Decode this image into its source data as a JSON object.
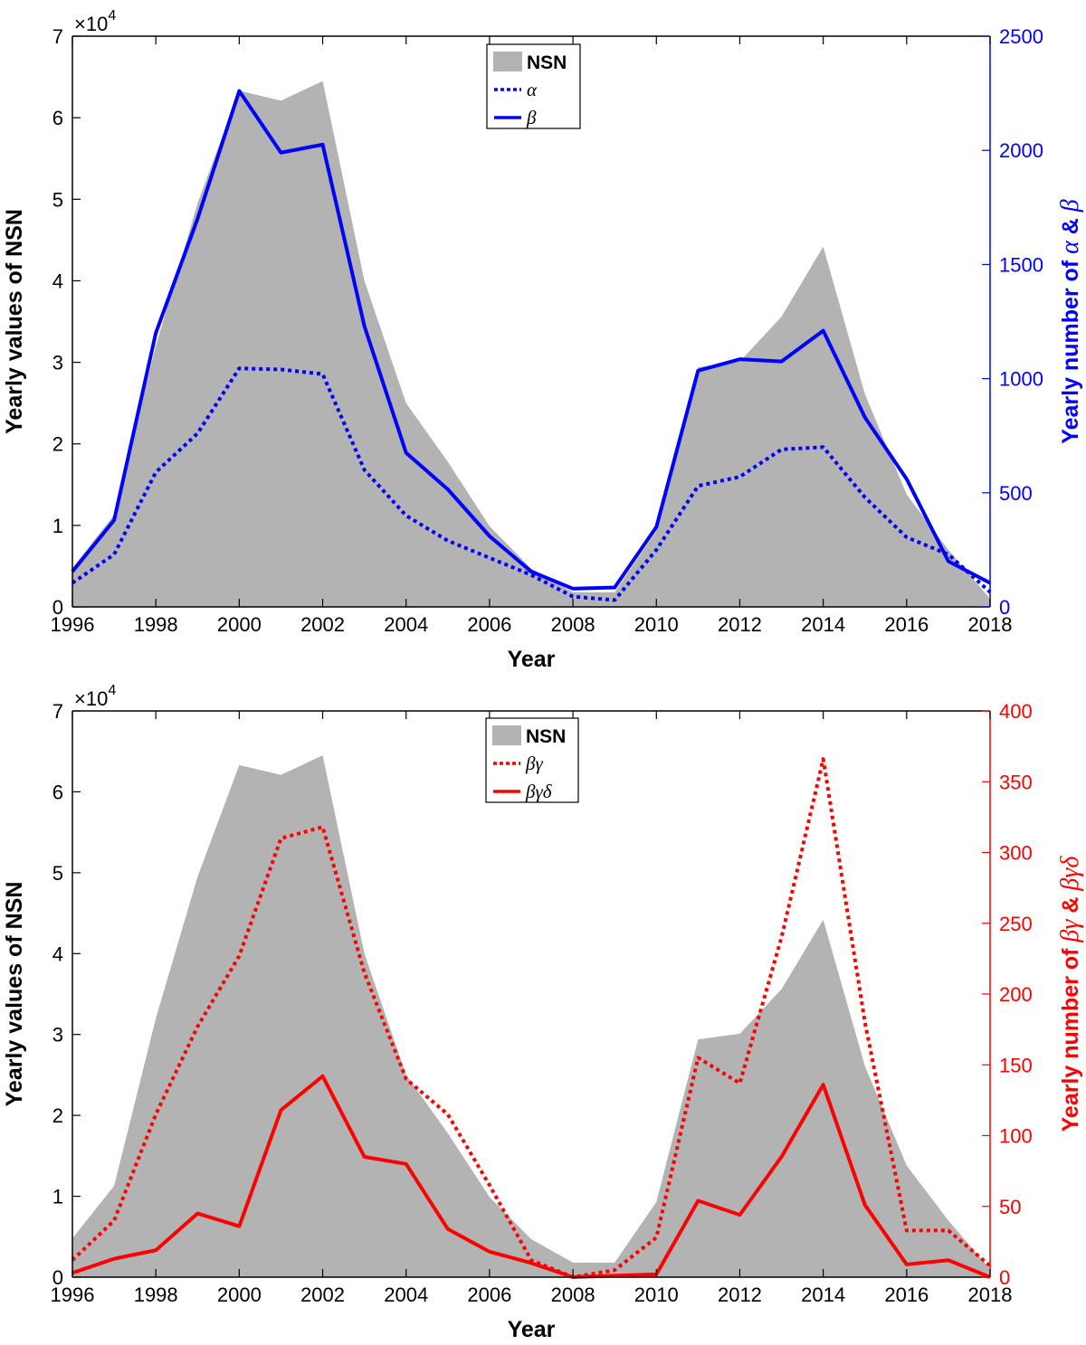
{
  "chart_data": [
    {
      "type": "area",
      "xlabel": "Year",
      "ylabel_left": "Yearly values of NSN",
      "ylabel_right_prefix": "Yearly number of ",
      "ylabel_right_greek": [
        "α",
        " & ",
        "β"
      ],
      "exponent_base": "×10",
      "exponent_power": "4",
      "x": [
        1996,
        1997,
        1998,
        1999,
        2000,
        2001,
        2002,
        2003,
        2004,
        2005,
        2006,
        2007,
        2008,
        2009,
        2010,
        2011,
        2012,
        2013,
        2014,
        2015,
        2016,
        2017,
        2018
      ],
      "xticks": [
        "1996",
        "1998",
        "2000",
        "2002",
        "2004",
        "2006",
        "2008",
        "2010",
        "2012",
        "2014",
        "2016",
        "2018"
      ],
      "xlim": [
        1996,
        2018
      ],
      "ylim_left": [
        0,
        70000
      ],
      "yticks_left": [
        "0",
        "1",
        "2",
        "3",
        "4",
        "5",
        "6",
        "7"
      ],
      "ylim_right": [
        0,
        2500
      ],
      "yticks_right": [
        "0",
        "500",
        "1000",
        "1500",
        "2000",
        "2500"
      ],
      "right_axis_color": "#0000ff",
      "nsn": {
        "name": "NSN",
        "color": "#b3b3b3",
        "values": [
          4800,
          11300,
          32000,
          49500,
          63300,
          62100,
          64500,
          40000,
          25000,
          17800,
          9900,
          4700,
          1800,
          1800,
          9300,
          29400,
          30100,
          35600,
          44200,
          26100,
          13800,
          7000,
          1000
        ]
      },
      "series": [
        {
          "name": "α",
          "style": "dotted",
          "color": "#0000ff",
          "values": [
            105,
            230,
            590,
            760,
            1045,
            1040,
            1020,
            600,
            400,
            290,
            215,
            140,
            45,
            30,
            250,
            530,
            570,
            690,
            700,
            480,
            305,
            230,
            65
          ]
        },
        {
          "name": "β",
          "style": "solid",
          "color": "#0000ff",
          "values": [
            155,
            380,
            1200,
            1700,
            2260,
            1990,
            2025,
            1230,
            675,
            515,
            310,
            155,
            80,
            85,
            350,
            1035,
            1085,
            1075,
            1210,
            830,
            560,
            200,
            105
          ]
        }
      ],
      "legend_position": "top-center"
    },
    {
      "type": "area",
      "xlabel": "Year",
      "ylabel_left": "Yearly values of NSN",
      "ylabel_right_prefix": "Yearly number of ",
      "ylabel_right_greek": [
        "βγ",
        " & ",
        "βγδ"
      ],
      "exponent_base": "×10",
      "exponent_power": "4",
      "x": [
        1996,
        1997,
        1998,
        1999,
        2000,
        2001,
        2002,
        2003,
        2004,
        2005,
        2006,
        2007,
        2008,
        2009,
        2010,
        2011,
        2012,
        2013,
        2014,
        2015,
        2016,
        2017,
        2018
      ],
      "xticks": [
        "1996",
        "1998",
        "2000",
        "2002",
        "2004",
        "2006",
        "2008",
        "2010",
        "2012",
        "2014",
        "2016",
        "2018"
      ],
      "xlim": [
        1996,
        2018
      ],
      "ylim_left": [
        0,
        70000
      ],
      "yticks_left": [
        "0",
        "1",
        "2",
        "3",
        "4",
        "5",
        "6",
        "7"
      ],
      "ylim_right": [
        0,
        400
      ],
      "yticks_right": [
        "0",
        "50",
        "100",
        "150",
        "200",
        "250",
        "300",
        "350",
        "400"
      ],
      "right_axis_color": "#ff0000",
      "nsn": {
        "name": "NSN",
        "color": "#b3b3b3",
        "values": [
          4800,
          11300,
          32000,
          49500,
          63300,
          62100,
          64500,
          40000,
          25000,
          17800,
          9900,
          4700,
          1800,
          1800,
          9300,
          29400,
          30100,
          35600,
          44200,
          26100,
          13800,
          7000,
          1000
        ]
      },
      "series": [
        {
          "name": "βγ",
          "style": "dotted",
          "color": "#ff0000",
          "values": [
            12,
            40,
            115,
            177,
            227,
            310,
            318,
            215,
            140,
            115,
            65,
            12,
            0,
            5,
            28,
            155,
            137,
            240,
            366,
            180,
            33,
            33,
            8
          ]
        },
        {
          "name": "βγδ",
          "style": "solid",
          "color": "#ff0000",
          "values": [
            3,
            13,
            19,
            45,
            36,
            118,
            142,
            85,
            80,
            34,
            18,
            10,
            0,
            1,
            2,
            54,
            44,
            85,
            136,
            51,
            9,
            12,
            0
          ]
        }
      ],
      "legend_position": "top-center"
    }
  ]
}
